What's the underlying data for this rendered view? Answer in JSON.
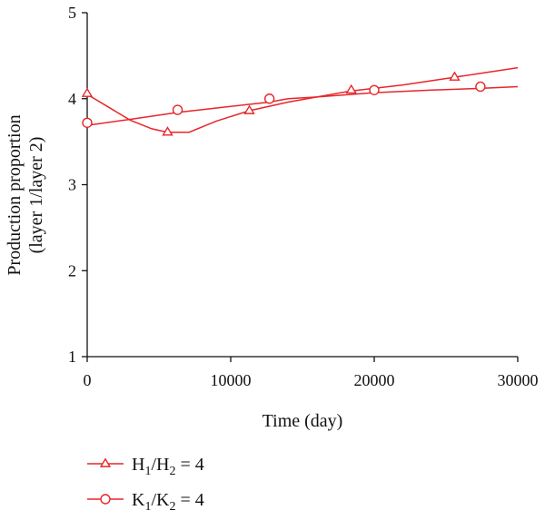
{
  "chart_data": {
    "type": "line",
    "xlabel": "Time (day)",
    "ylabel_line1": "Production proportion",
    "ylabel_line2": "(layer 1/layer 2)",
    "xlim": [
      0,
      30000
    ],
    "ylim": [
      1,
      5
    ],
    "x_ticks": [
      0,
      10000,
      20000,
      30000
    ],
    "y_ticks": [
      1,
      2,
      3,
      4,
      5
    ],
    "x_tick_labels": [
      "0",
      "10000",
      "20000",
      "30000"
    ],
    "y_tick_labels": [
      "1",
      "2",
      "3",
      "4",
      "5"
    ],
    "grid": false,
    "legend_position": "bottom-left",
    "series": [
      {
        "name_parts": [
          "H",
          "1",
          "/H",
          "2",
          " = 4"
        ],
        "name": "H1/H2 = 4",
        "marker": "triangle",
        "color": "#e8262a",
        "line": [
          [
            0,
            4.05
          ],
          [
            1500,
            3.9
          ],
          [
            3000,
            3.75
          ],
          [
            4500,
            3.65
          ],
          [
            5600,
            3.61
          ],
          [
            7100,
            3.61
          ],
          [
            9000,
            3.74
          ],
          [
            11300,
            3.86
          ],
          [
            14000,
            3.96
          ],
          [
            18400,
            4.09
          ],
          [
            22000,
            4.16
          ],
          [
            25600,
            4.25
          ],
          [
            30000,
            4.36
          ]
        ],
        "markers": [
          [
            0,
            4.06
          ],
          [
            5600,
            3.61
          ],
          [
            11300,
            3.86
          ],
          [
            18400,
            4.1
          ],
          [
            25600,
            4.25
          ]
        ]
      },
      {
        "name_parts": [
          "K",
          "1",
          "/K",
          "2",
          " = 4"
        ],
        "name": "K1/K2 = 4",
        "marker": "circle",
        "color": "#e8262a",
        "line": [
          [
            0,
            3.69
          ],
          [
            3000,
            3.76
          ],
          [
            6300,
            3.84
          ],
          [
            10000,
            3.91
          ],
          [
            12700,
            3.96
          ],
          [
            14000,
            4.0
          ],
          [
            16000,
            4.02
          ],
          [
            20000,
            4.07
          ],
          [
            24000,
            4.1
          ],
          [
            27400,
            4.12
          ],
          [
            30000,
            4.14
          ]
        ],
        "markers": [
          [
            0,
            3.72
          ],
          [
            6300,
            3.87
          ],
          [
            12700,
            4.0
          ],
          [
            20000,
            4.1
          ],
          [
            27400,
            4.14
          ]
        ]
      }
    ]
  }
}
